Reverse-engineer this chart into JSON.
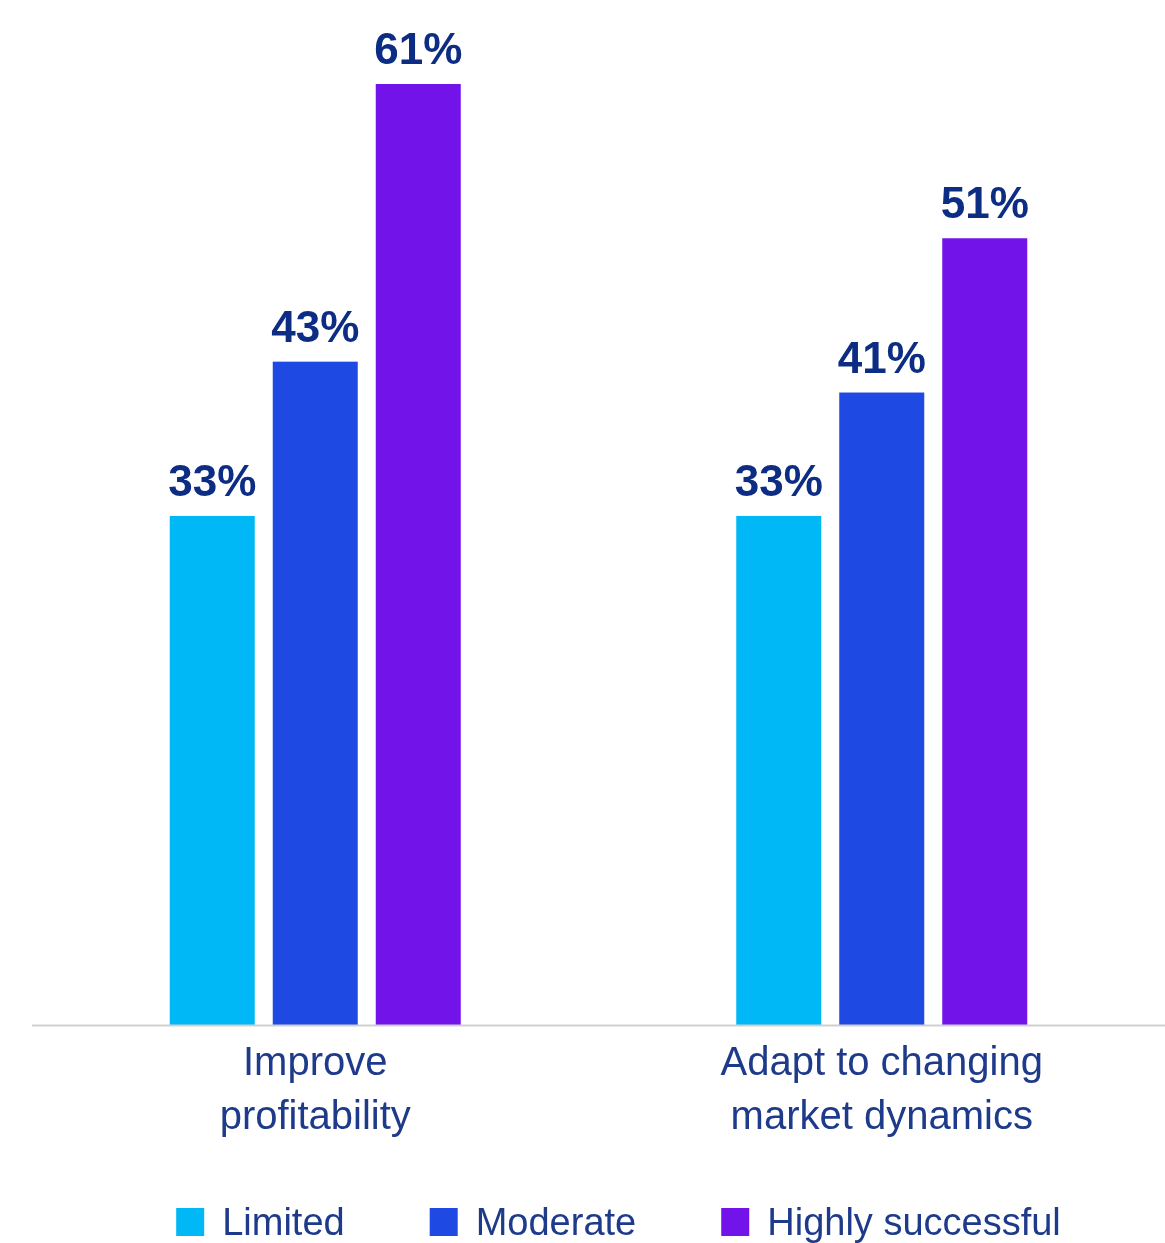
{
  "chart_data": {
    "type": "bar",
    "categories": [
      "Improve profitability",
      "Adapt to changing market dynamics"
    ],
    "series": [
      {
        "name": "Limited",
        "color": "#00b8f5",
        "values": [
          33,
          33
        ],
        "value_labels": [
          "33%",
          "33%"
        ]
      },
      {
        "name": "Moderate",
        "color": "#1e49e2",
        "values": [
          43,
          41
        ],
        "value_labels": [
          "43%",
          "41%"
        ]
      },
      {
        "name": "Highly successful",
        "color": "#7213ea",
        "values": [
          61,
          51
        ],
        "value_labels": [
          "61%",
          "51%"
        ]
      }
    ],
    "legend": "bottom"
  }
}
